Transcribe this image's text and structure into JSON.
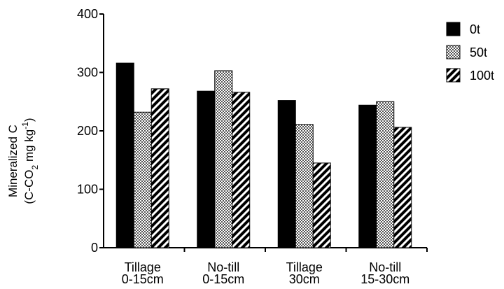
{
  "chart_data": {
    "type": "bar",
    "ylabel_line1": "Mineralized C",
    "ylabel_line2_pre": "(C-CO",
    "ylabel_line2_sub": "2",
    "ylabel_line2_mid": " mg kg",
    "ylabel_line2_sup": "-1",
    "ylabel_line2_post": ")",
    "ylim": [
      0,
      400
    ],
    "yticks": [
      0,
      100,
      200,
      300,
      400
    ],
    "categories": [
      {
        "line1": "Tillage",
        "line2": "0-15cm"
      },
      {
        "line1": "No-till",
        "line2": "0-15cm"
      },
      {
        "line1": "Tillage",
        "line2": "30cm"
      },
      {
        "line1": "No-till",
        "line2": "15-30cm"
      }
    ],
    "series": [
      {
        "name": "0t",
        "pattern": "solid",
        "values": [
          316,
          268,
          252,
          244
        ]
      },
      {
        "name": "50t",
        "pattern": "checker",
        "values": [
          232,
          303,
          211,
          250
        ]
      },
      {
        "name": "100t",
        "pattern": "diagonal",
        "values": [
          272,
          266,
          145,
          206
        ]
      }
    ],
    "legend_position": "top-right",
    "grid": false
  }
}
